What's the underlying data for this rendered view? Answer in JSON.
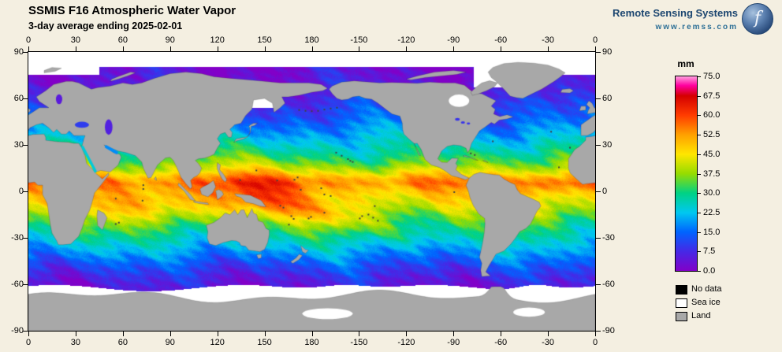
{
  "header": {
    "title": "SSMIS F16 Atmospheric Water Vapor",
    "subtitle": "3-day average ending 2025-02-01",
    "brand_name": "Remote Sensing Systems",
    "brand_site": "www.remss.com",
    "logo_monogram": "f"
  },
  "axes": {
    "lon_labels": [
      "0",
      "30",
      "60",
      "90",
      "120",
      "150",
      "180",
      "-150",
      "-120",
      "-90",
      "-60",
      "-30",
      "0"
    ],
    "lat_labels": [
      "90",
      "60",
      "30",
      "0",
      "-30",
      "-60",
      "-90"
    ]
  },
  "colorbar": {
    "unit": "mm",
    "min": 0,
    "max": 75,
    "tick_labels": [
      "75.0",
      "67.5",
      "60.0",
      "52.5",
      "45.0",
      "37.5",
      "30.0",
      "22.5",
      "15.0",
      "7.5",
      "0.0"
    ],
    "gradient_stops": [
      {
        "value": 75,
        "color": "#ff9ede"
      },
      {
        "value": 71.5,
        "color": "#ff00a0"
      },
      {
        "value": 67.5,
        "color": "#d40000"
      },
      {
        "value": 60,
        "color": "#ff3c00"
      },
      {
        "value": 52.5,
        "color": "#ffa000"
      },
      {
        "value": 45,
        "color": "#ffe600"
      },
      {
        "value": 37.5,
        "color": "#96dc00"
      },
      {
        "value": 30,
        "color": "#00d284"
      },
      {
        "value": 22.5,
        "color": "#00c8f0"
      },
      {
        "value": 15,
        "color": "#0064ff"
      },
      {
        "value": 7.5,
        "color": "#4628e6"
      },
      {
        "value": 0,
        "color": "#8200c8"
      }
    ]
  },
  "legend": {
    "items": [
      {
        "label": "No data",
        "color": "#000000"
      },
      {
        "label": "Sea ice",
        "color": "#ffffff"
      },
      {
        "label": "Land",
        "color": "#a8a8a8"
      }
    ]
  }
}
